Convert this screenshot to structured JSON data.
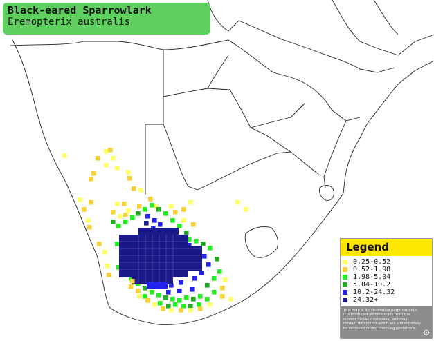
{
  "title": {
    "common_name": "Black-eared Sparrowlark",
    "scientific_name": "Eremopterix australis"
  },
  "legend": {
    "title": "Legend",
    "items": [
      {
        "label": "0.25-0.52",
        "color": "#ffff66"
      },
      {
        "label": "0.52-1.98",
        "color": "#f5d23a"
      },
      {
        "label": "1.98-5.04",
        "color": "#22ee22"
      },
      {
        "label": "5.04-10.2",
        "color": "#22aa22"
      },
      {
        "label": "10.2-24.32",
        "color": "#2222ee"
      },
      {
        "label": "24.32+",
        "color": "#1a1a8a"
      }
    ],
    "note": "This map is for illustrative purposes only; it is produced automatically from the current SABAP2 database, and may contain datapoints which will subsequently be removed during checking operations.",
    "settings_icon": "gear-icon"
  },
  "colors": {
    "title_bg": "#5fcf60",
    "legend_header_bg": "#ffe800",
    "legend_note_bg": "#8c8c8c"
  }
}
